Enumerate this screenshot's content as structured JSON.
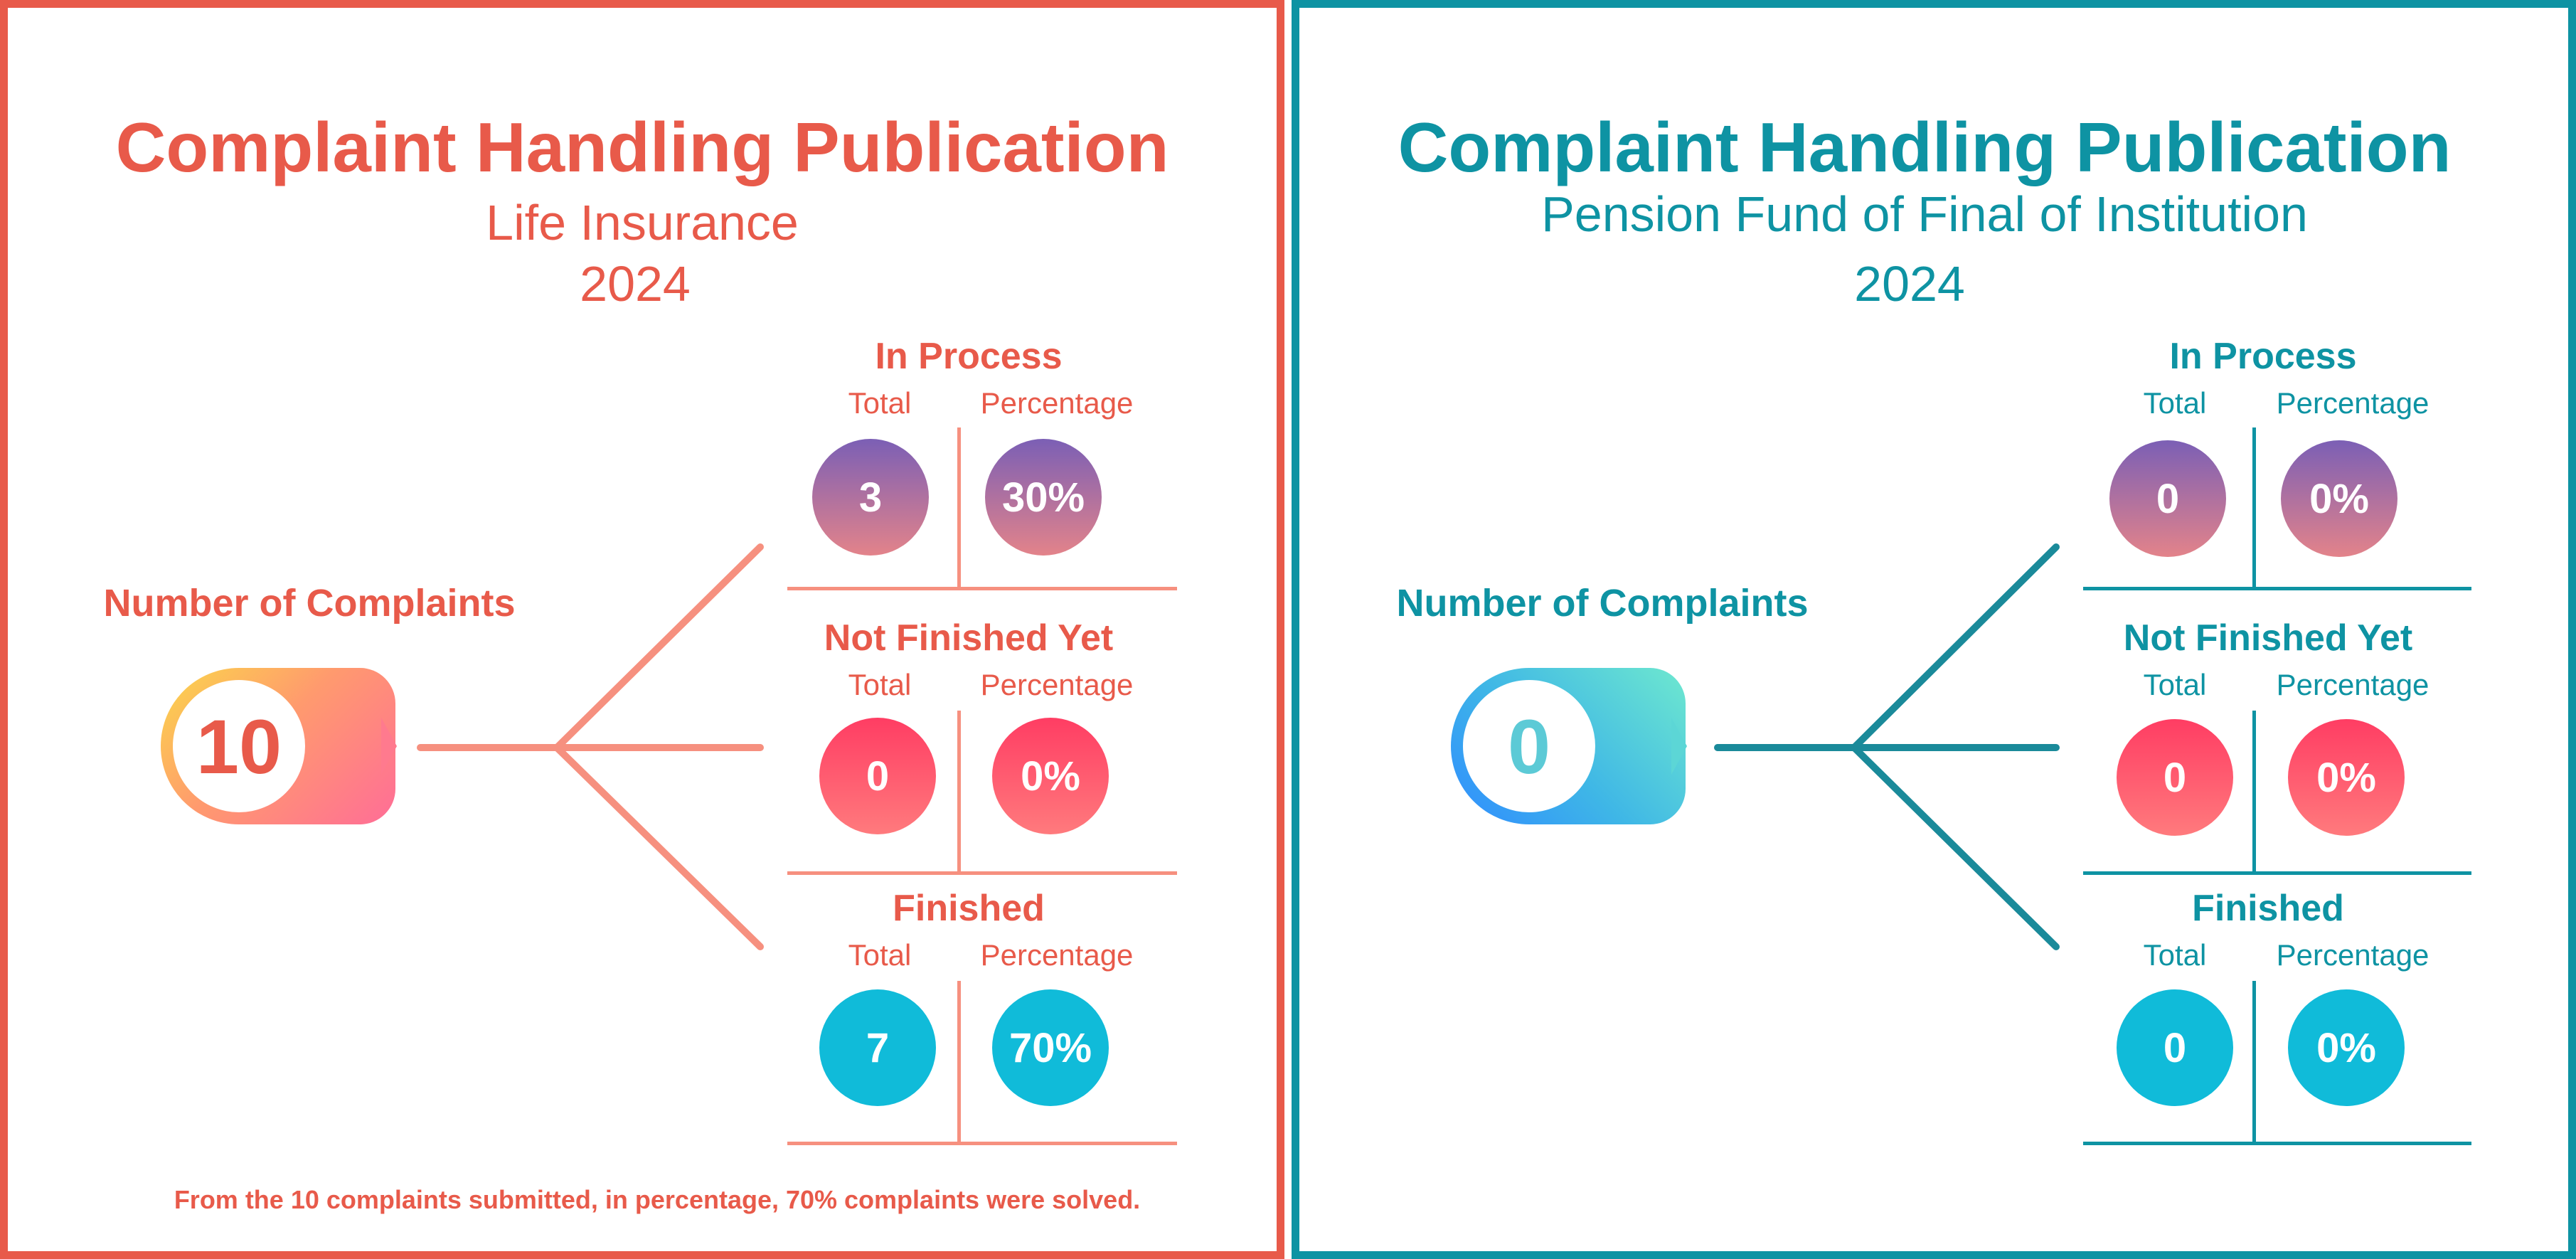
{
  "colors": {
    "left_accent": "#e85a4a",
    "left_branch": "#f6907f",
    "right_accent": "#0e93a3",
    "right_branch": "#1a8a9a",
    "process_gradient": [
      "#7b5fb5",
      "#e3838a"
    ],
    "not_finished_gradient": [
      "#ff3d63",
      "#ff7a7d"
    ],
    "finished": "#10bbd9",
    "left_badge_gradient": [
      "#fbd84a",
      "#ff6d97"
    ],
    "right_badge_gradient": [
      "#2f8cff",
      "#6ee8cf"
    ]
  },
  "left": {
    "title": "Complaint Handling Publication",
    "subtitle": "Life Insurance",
    "year": "2024",
    "number_label": "Number of Complaints",
    "number_value": "10",
    "sections": {
      "in_process": {
        "title": "In Process",
        "total_label": "Total",
        "percentage_label": "Percentage",
        "total": "3",
        "percentage": "30%"
      },
      "not_finished": {
        "title": "Not Finished Yet",
        "total_label": "Total",
        "percentage_label": "Percentage",
        "total": "0",
        "percentage": "0%"
      },
      "finished": {
        "title": "Finished",
        "total_label": "Total",
        "percentage_label": "Percentage",
        "total": "7",
        "percentage": "70%"
      }
    },
    "footnote": "From the 10 complaints submitted, in percentage, 70% complaints were solved."
  },
  "right": {
    "title": "Complaint Handling Publication",
    "subtitle": "Pension Fund of Final of Institution",
    "year": "2024",
    "number_label": "Number of Complaints",
    "number_value": "0",
    "sections": {
      "in_process": {
        "title": "In Process",
        "total_label": "Total",
        "percentage_label": "Percentage",
        "total": "0",
        "percentage": "0%"
      },
      "not_finished": {
        "title": "Not Finished Yet",
        "total_label": "Total",
        "percentage_label": "Percentage",
        "total": "0",
        "percentage": "0%"
      },
      "finished": {
        "title": "Finished",
        "total_label": "Total",
        "percentage_label": "Percentage",
        "total": "0",
        "percentage": "0%"
      }
    }
  }
}
